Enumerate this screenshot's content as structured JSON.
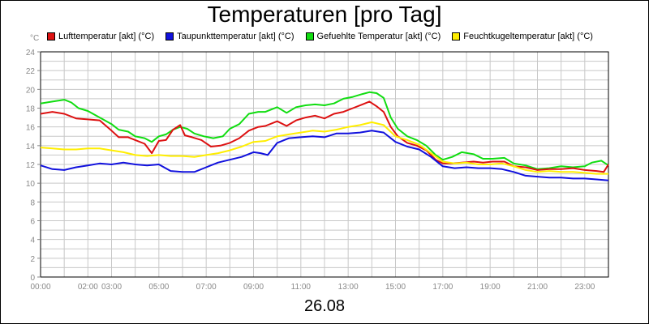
{
  "chart_data": {
    "type": "line",
    "title": "Temperaturen [pro Tag]",
    "y_unit": "°C",
    "date_label": "26.08",
    "ylim": [
      0,
      24
    ],
    "y_ticks": [
      0,
      2,
      4,
      6,
      8,
      10,
      12,
      14,
      16,
      18,
      20,
      22,
      24
    ],
    "xlim": [
      0,
      24
    ],
    "x_ticks": [
      {
        "pos": 0,
        "label": "00:00"
      },
      {
        "pos": 2,
        "label": "02:00"
      },
      {
        "pos": 3,
        "label": "03:00"
      },
      {
        "pos": 5,
        "label": "05:00"
      },
      {
        "pos": 7,
        "label": "07:00"
      },
      {
        "pos": 9,
        "label": "09:00"
      },
      {
        "pos": 11,
        "label": "11:00"
      },
      {
        "pos": 13,
        "label": "13:00"
      },
      {
        "pos": 15,
        "label": "15:00"
      },
      {
        "pos": 17,
        "label": "17:00"
      },
      {
        "pos": 19,
        "label": "19:00"
      },
      {
        "pos": 21,
        "label": "21:00"
      },
      {
        "pos": 23,
        "label": "23:00"
      }
    ],
    "grid": true,
    "legend_position": "top",
    "series": [
      {
        "name": "Lufttemperatur [akt] (°C)",
        "color": "#dd1111",
        "points": [
          [
            0,
            17.4
          ],
          [
            0.5,
            17.6
          ],
          [
            1,
            17.4
          ],
          [
            1.5,
            16.9
          ],
          [
            2,
            16.8
          ],
          [
            2.5,
            16.7
          ],
          [
            3,
            15.6
          ],
          [
            3.3,
            14.9
          ],
          [
            3.7,
            14.9
          ],
          [
            4,
            14.6
          ],
          [
            4.4,
            14.2
          ],
          [
            4.7,
            13.2
          ],
          [
            5,
            14.5
          ],
          [
            5.3,
            14.6
          ],
          [
            5.6,
            15.7
          ],
          [
            5.9,
            16.2
          ],
          [
            6.1,
            15.1
          ],
          [
            6.4,
            14.9
          ],
          [
            6.8,
            14.6
          ],
          [
            7.2,
            13.9
          ],
          [
            7.6,
            14.0
          ],
          [
            8,
            14.3
          ],
          [
            8.4,
            14.8
          ],
          [
            8.8,
            15.6
          ],
          [
            9.2,
            16.0
          ],
          [
            9.5,
            16.1
          ],
          [
            10,
            16.6
          ],
          [
            10.4,
            16.1
          ],
          [
            10.8,
            16.7
          ],
          [
            11.2,
            17.0
          ],
          [
            11.6,
            17.2
          ],
          [
            12,
            16.9
          ],
          [
            12.4,
            17.4
          ],
          [
            12.8,
            17.6
          ],
          [
            13.2,
            18.0
          ],
          [
            13.6,
            18.4
          ],
          [
            13.9,
            18.7
          ],
          [
            14.2,
            18.2
          ],
          [
            14.5,
            17.6
          ],
          [
            14.8,
            16.0
          ],
          [
            15.1,
            15.0
          ],
          [
            15.5,
            14.3
          ],
          [
            15.9,
            14.0
          ],
          [
            16.3,
            13.5
          ],
          [
            16.7,
            12.5
          ],
          [
            17,
            12.1
          ],
          [
            17.4,
            12.1
          ],
          [
            17.8,
            12.2
          ],
          [
            18.3,
            12.3
          ],
          [
            18.7,
            12.2
          ],
          [
            19.1,
            12.3
          ],
          [
            19.6,
            12.3
          ],
          [
            20,
            11.8
          ],
          [
            20.5,
            11.7
          ],
          [
            21,
            11.4
          ],
          [
            21.5,
            11.5
          ],
          [
            22,
            11.5
          ],
          [
            22.5,
            11.6
          ],
          [
            23,
            11.4
          ],
          [
            23.5,
            11.3
          ],
          [
            23.8,
            11.2
          ],
          [
            24,
            12.0
          ]
        ]
      },
      {
        "name": "Taupunkttemperatur [akt] (°C)",
        "color": "#1111dd",
        "points": [
          [
            0,
            11.9
          ],
          [
            0.5,
            11.5
          ],
          [
            1,
            11.4
          ],
          [
            1.5,
            11.7
          ],
          [
            2,
            11.9
          ],
          [
            2.5,
            12.1
          ],
          [
            3,
            12.0
          ],
          [
            3.5,
            12.2
          ],
          [
            4,
            12.0
          ],
          [
            4.5,
            11.9
          ],
          [
            5,
            12.0
          ],
          [
            5.5,
            11.3
          ],
          [
            6,
            11.2
          ],
          [
            6.5,
            11.2
          ],
          [
            7,
            11.7
          ],
          [
            7.5,
            12.2
          ],
          [
            8,
            12.5
          ],
          [
            8.5,
            12.8
          ],
          [
            9,
            13.3
          ],
          [
            9.3,
            13.2
          ],
          [
            9.6,
            13.0
          ],
          [
            10,
            14.3
          ],
          [
            10.5,
            14.8
          ],
          [
            11,
            14.9
          ],
          [
            11.5,
            15.0
          ],
          [
            12,
            14.9
          ],
          [
            12.5,
            15.3
          ],
          [
            13,
            15.3
          ],
          [
            13.5,
            15.4
          ],
          [
            14,
            15.6
          ],
          [
            14.5,
            15.4
          ],
          [
            15,
            14.4
          ],
          [
            15.5,
            13.9
          ],
          [
            16,
            13.6
          ],
          [
            16.5,
            12.8
          ],
          [
            17,
            11.8
          ],
          [
            17.5,
            11.6
          ],
          [
            18,
            11.7
          ],
          [
            18.5,
            11.6
          ],
          [
            19,
            11.6
          ],
          [
            19.5,
            11.5
          ],
          [
            20,
            11.2
          ],
          [
            20.5,
            10.8
          ],
          [
            21,
            10.7
          ],
          [
            21.5,
            10.6
          ],
          [
            22,
            10.6
          ],
          [
            22.5,
            10.5
          ],
          [
            23,
            10.5
          ],
          [
            23.5,
            10.4
          ],
          [
            24,
            10.3
          ]
        ]
      },
      {
        "name": "Gefuehlte Temperatur [akt] (°C)",
        "color": "#11dd11",
        "points": [
          [
            0,
            18.5
          ],
          [
            0.5,
            18.7
          ],
          [
            1,
            18.9
          ],
          [
            1.3,
            18.6
          ],
          [
            1.6,
            18.0
          ],
          [
            2,
            17.7
          ],
          [
            2.5,
            17.0
          ],
          [
            3,
            16.3
          ],
          [
            3.3,
            15.7
          ],
          [
            3.7,
            15.5
          ],
          [
            4,
            15.0
          ],
          [
            4.4,
            14.8
          ],
          [
            4.7,
            14.4
          ],
          [
            5,
            15.0
          ],
          [
            5.3,
            15.2
          ],
          [
            5.6,
            15.7
          ],
          [
            5.9,
            16.0
          ],
          [
            6.2,
            15.8
          ],
          [
            6.5,
            15.3
          ],
          [
            6.9,
            15.0
          ],
          [
            7.3,
            14.8
          ],
          [
            7.7,
            15.0
          ],
          [
            8,
            15.8
          ],
          [
            8.4,
            16.3
          ],
          [
            8.8,
            17.4
          ],
          [
            9.2,
            17.6
          ],
          [
            9.5,
            17.6
          ],
          [
            10,
            18.1
          ],
          [
            10.4,
            17.5
          ],
          [
            10.8,
            18.1
          ],
          [
            11.2,
            18.3
          ],
          [
            11.6,
            18.4
          ],
          [
            12,
            18.3
          ],
          [
            12.4,
            18.5
          ],
          [
            12.8,
            19.0
          ],
          [
            13.2,
            19.2
          ],
          [
            13.6,
            19.5
          ],
          [
            13.9,
            19.7
          ],
          [
            14.2,
            19.6
          ],
          [
            14.5,
            19.1
          ],
          [
            14.8,
            17.0
          ],
          [
            15.1,
            15.8
          ],
          [
            15.5,
            15.0
          ],
          [
            15.9,
            14.6
          ],
          [
            16.3,
            14.0
          ],
          [
            16.7,
            13.0
          ],
          [
            17,
            12.5
          ],
          [
            17.4,
            12.8
          ],
          [
            17.8,
            13.3
          ],
          [
            18.3,
            13.1
          ],
          [
            18.7,
            12.6
          ],
          [
            19.1,
            12.6
          ],
          [
            19.6,
            12.7
          ],
          [
            20,
            12.1
          ],
          [
            20.5,
            11.9
          ],
          [
            21,
            11.5
          ],
          [
            21.5,
            11.6
          ],
          [
            22,
            11.8
          ],
          [
            22.5,
            11.7
          ],
          [
            23,
            11.8
          ],
          [
            23.3,
            12.2
          ],
          [
            23.7,
            12.4
          ],
          [
            24,
            11.9
          ]
        ]
      },
      {
        "name": "Feuchtkugeltemperatur [akt] (°C)",
        "color": "#ffee00",
        "points": [
          [
            0,
            13.8
          ],
          [
            0.5,
            13.7
          ],
          [
            1,
            13.6
          ],
          [
            1.5,
            13.6
          ],
          [
            2,
            13.7
          ],
          [
            2.5,
            13.7
          ],
          [
            3,
            13.5
          ],
          [
            3.5,
            13.3
          ],
          [
            4,
            13.0
          ],
          [
            4.5,
            12.9
          ],
          [
            5,
            13.0
          ],
          [
            5.5,
            12.9
          ],
          [
            6,
            12.9
          ],
          [
            6.5,
            12.8
          ],
          [
            7,
            13.0
          ],
          [
            7.5,
            13.2
          ],
          [
            8,
            13.5
          ],
          [
            8.5,
            13.9
          ],
          [
            9,
            14.4
          ],
          [
            9.5,
            14.5
          ],
          [
            10,
            15.0
          ],
          [
            10.5,
            15.2
          ],
          [
            11,
            15.4
          ],
          [
            11.5,
            15.6
          ],
          [
            12,
            15.5
          ],
          [
            12.5,
            15.7
          ],
          [
            13,
            16.0
          ],
          [
            13.5,
            16.2
          ],
          [
            14,
            16.5
          ],
          [
            14.5,
            16.2
          ],
          [
            15,
            15.0
          ],
          [
            15.5,
            14.6
          ],
          [
            16,
            14.1
          ],
          [
            16.5,
            13.2
          ],
          [
            17,
            12.3
          ],
          [
            17.5,
            12.1
          ],
          [
            18,
            12.2
          ],
          [
            18.5,
            12.0
          ],
          [
            19,
            12.0
          ],
          [
            19.5,
            12.1
          ],
          [
            20,
            11.8
          ],
          [
            20.5,
            11.4
          ],
          [
            21,
            11.2
          ],
          [
            21.5,
            11.3
          ],
          [
            22,
            11.2
          ],
          [
            22.5,
            11.2
          ],
          [
            23,
            11.1
          ],
          [
            23.5,
            11.0
          ],
          [
            24,
            11.0
          ]
        ]
      }
    ]
  }
}
